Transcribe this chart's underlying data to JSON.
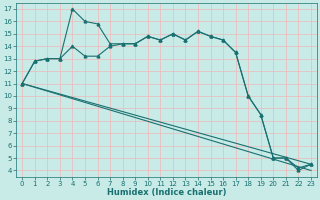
{
  "xlabel": "Humidex (Indice chaleur)",
  "background_color": "#c8ebe8",
  "grid_color": "#f0b8b8",
  "line_color": "#1a7070",
  "xlim": [
    -0.5,
    23.5
  ],
  "ylim": [
    3.5,
    17.5
  ],
  "yticks": [
    4,
    5,
    6,
    7,
    8,
    9,
    10,
    11,
    12,
    13,
    14,
    15,
    16,
    17
  ],
  "xticks": [
    0,
    1,
    2,
    3,
    4,
    5,
    6,
    7,
    8,
    9,
    10,
    11,
    12,
    13,
    14,
    15,
    16,
    17,
    18,
    19,
    20,
    21,
    22,
    23
  ],
  "curve1_x": [
    0,
    1,
    2,
    3,
    4,
    5,
    6,
    7,
    8,
    9,
    10,
    11,
    12,
    13,
    14,
    15,
    16,
    17,
    18,
    19,
    20,
    21,
    22,
    23
  ],
  "curve1_y": [
    11,
    12.8,
    13.0,
    13.0,
    17.0,
    16.0,
    15.8,
    14.2,
    14.2,
    14.2,
    14.8,
    14.5,
    15.0,
    14.5,
    15.2,
    14.8,
    14.5,
    13.5,
    10.0,
    8.5,
    5.0,
    5.0,
    4.0,
    4.5
  ],
  "curve2_x": [
    0,
    1,
    2,
    3,
    4,
    5,
    6,
    7,
    8,
    9,
    10,
    11,
    12,
    13,
    14,
    15,
    16,
    17,
    18,
    19,
    20,
    21,
    22,
    23
  ],
  "curve2_y": [
    11,
    12.8,
    13.0,
    13.0,
    14.0,
    13.2,
    13.2,
    14.0,
    14.2,
    14.2,
    14.8,
    14.5,
    15.0,
    14.5,
    15.2,
    14.8,
    14.5,
    13.5,
    10.0,
    8.5,
    5.0,
    5.0,
    4.2,
    4.5
  ],
  "line1_x": [
    0,
    23
  ],
  "line1_y": [
    11.0,
    4.5
  ],
  "line2_x": [
    0,
    23
  ],
  "line2_y": [
    11.0,
    4.0
  ],
  "marker_style": "^",
  "marker_size": 2.0,
  "line_width": 0.8,
  "tick_fontsize": 5,
  "xlabel_fontsize": 6
}
